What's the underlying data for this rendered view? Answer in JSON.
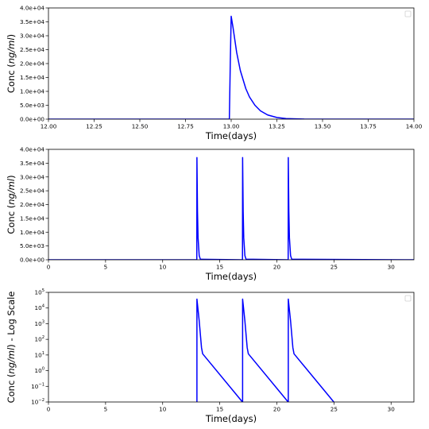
{
  "chart_data": [
    {
      "type": "line",
      "xlabel": "Time(days)",
      "ylabel_plain": "Conc (",
      "ylabel_italic": "ng/ml",
      "ylabel_suffix": ")",
      "xlim": [
        12.0,
        14.0
      ],
      "ylim": [
        0,
        40000
      ],
      "yscale": "linear",
      "xticks": [
        12.0,
        12.25,
        12.5,
        12.75,
        13.0,
        13.25,
        13.5,
        13.75,
        14.0
      ],
      "xtick_labels": [
        "12.00",
        "12.25",
        "12.50",
        "12.75",
        "13.00",
        "13.25",
        "13.50",
        "13.75",
        "14.00"
      ],
      "yticks": [
        0,
        5000,
        10000,
        15000,
        20000,
        25000,
        30000,
        35000,
        40000
      ],
      "ytick_labels": [
        "0.0e+00",
        "5.0e+03",
        "1.0e+04",
        "1.5e+04",
        "2.0e+04",
        "2.5e+04",
        "3.0e+04",
        "3.5e+04",
        "4.0e+04"
      ],
      "grid": false,
      "legend": "top-right, empty",
      "series": [
        {
          "color": "#0000ff",
          "x": [
            12.0,
            12.99,
            12.995,
            13.0,
            13.01,
            13.03,
            13.05,
            13.08,
            13.1,
            13.13,
            13.16,
            13.2,
            13.25,
            13.3,
            13.4,
            14.0
          ],
          "y": [
            0,
            0,
            20000,
            37000,
            33000,
            24000,
            17500,
            11000,
            8000,
            5000,
            3000,
            1500,
            600,
            200,
            20,
            0
          ]
        }
      ]
    },
    {
      "type": "line",
      "xlabel": "Time(days)",
      "ylabel_plain": "Conc (",
      "ylabel_italic": "ng/ml",
      "ylabel_suffix": ")",
      "xlim": [
        0,
        32
      ],
      "ylim": [
        0,
        40000
      ],
      "yscale": "linear",
      "xticks": [
        0,
        5,
        10,
        15,
        20,
        25,
        30
      ],
      "xtick_labels": [
        "0",
        "5",
        "10",
        "15",
        "20",
        "25",
        "30"
      ],
      "yticks": [
        0,
        5000,
        10000,
        15000,
        20000,
        25000,
        30000,
        35000,
        40000
      ],
      "ytick_labels": [
        "0.0e+00",
        "5.0e+03",
        "1.0e+04",
        "1.5e+04",
        "2.0e+04",
        "2.5e+04",
        "3.0e+04",
        "3.5e+04",
        "4.0e+04"
      ],
      "grid": false,
      "series": [
        {
          "color": "#0000ff",
          "x": [
            0,
            12.99,
            13.0,
            13.05,
            13.1,
            13.2,
            13.3,
            16.99,
            17.0,
            17.05,
            17.1,
            17.2,
            17.3,
            20.99,
            21.0,
            21.05,
            21.1,
            21.2,
            21.3,
            32
          ],
          "y": [
            0,
            0,
            37000,
            17500,
            8000,
            1500,
            200,
            0,
            37000,
            17500,
            8000,
            1500,
            200,
            0,
            37000,
            17500,
            8000,
            1500,
            200,
            0
          ]
        }
      ]
    },
    {
      "type": "line",
      "xlabel": "Time(days)",
      "ylabel_plain": "Conc (",
      "ylabel_italic": "ng/ml",
      "ylabel_suffix": ") - Log Scale",
      "xlim": [
        0,
        32
      ],
      "ylim": [
        0.01,
        100000
      ],
      "yscale": "log",
      "xticks": [
        0,
        5,
        10,
        15,
        20,
        25,
        30
      ],
      "xtick_labels": [
        "0",
        "5",
        "10",
        "15",
        "20",
        "25",
        "30"
      ],
      "yticks": [
        0.01,
        0.1,
        1,
        10,
        100,
        1000,
        10000,
        100000
      ],
      "ytick_labels": [
        {
          "base": "10",
          "exp": "−2"
        },
        {
          "base": "10",
          "exp": "−1"
        },
        {
          "base": "10",
          "exp": "0"
        },
        {
          "base": "10",
          "exp": "1"
        },
        {
          "base": "10",
          "exp": "2"
        },
        {
          "base": "10",
          "exp": "3"
        },
        {
          "base": "10",
          "exp": "4"
        },
        {
          "base": "10",
          "exp": "5"
        }
      ],
      "grid": false,
      "legend": "top-right, empty",
      "series": [
        {
          "color": "#0000ff",
          "x": [
            13.0,
            13.0,
            13.2,
            13.4,
            13.5,
            16.98,
            17.0,
            17.0,
            17.2,
            17.4,
            17.5,
            20.98,
            21.0,
            21.0,
            21.2,
            21.4,
            21.5,
            24.98,
            25.0
          ],
          "y": [
            0.01,
            37000,
            1500,
            30,
            12,
            0.0101,
            0.01,
            37000,
            1500,
            30,
            12,
            0.0101,
            0.01,
            37000,
            1500,
            30,
            12,
            0.0101,
            0.01
          ]
        }
      ]
    }
  ]
}
